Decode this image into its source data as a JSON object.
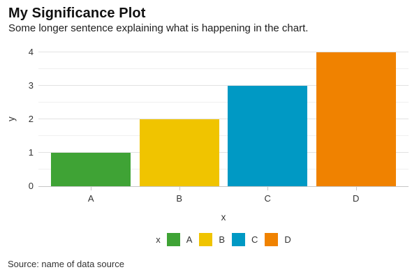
{
  "chart_data": {
    "type": "bar",
    "title": "My Significance Plot",
    "subtitle": "Some longer sentence explaining what is happening in the chart.",
    "categories": [
      "A",
      "B",
      "C",
      "D"
    ],
    "values": [
      1,
      2,
      3,
      4
    ],
    "series_colors": [
      "#3fa335",
      "#f0c400",
      "#0099c4",
      "#f08200"
    ],
    "xlabel": "x",
    "ylabel": "y",
    "ylim": [
      0,
      4
    ],
    "yticks": [
      0,
      1,
      2,
      3,
      4
    ],
    "minor_ytick_step": 0.5,
    "grid": "horizontal",
    "legend": {
      "title": "x",
      "position": "bottom-center",
      "entries": [
        {
          "label": "A",
          "color": "#3fa335"
        },
        {
          "label": "B",
          "color": "#f0c400"
        },
        {
          "label": "C",
          "color": "#0099c4"
        },
        {
          "label": "D",
          "color": "#f08200"
        }
      ]
    },
    "source": "Source: name of data source"
  },
  "colors": {
    "background": "#ffffff",
    "grid_major": "#e2e2e2",
    "grid_minor": "#efefef",
    "axis_line": "#c6c6c6",
    "title_text": "#111111",
    "subtitle_text": "#1d1d1d",
    "tick_text": "#333333",
    "source_text": "#333333"
  }
}
